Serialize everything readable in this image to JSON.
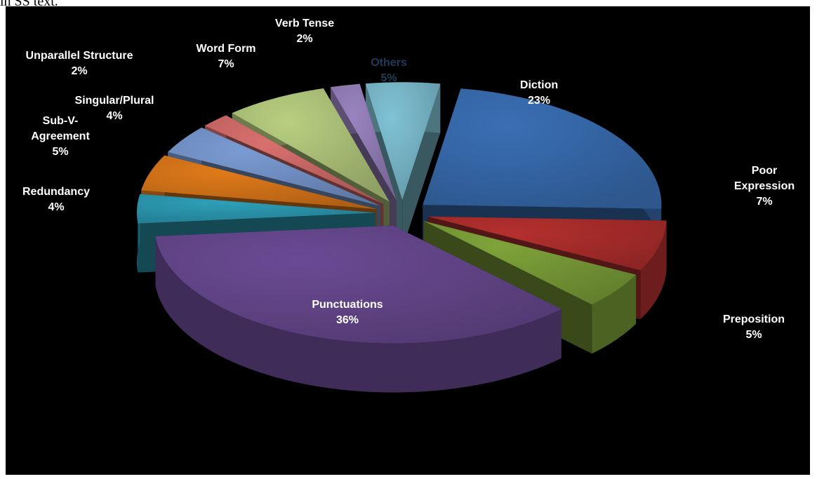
{
  "page_fragment_text": "in SS text.",
  "chart_data": {
    "type": "pie",
    "style": "3D exploded pie",
    "background": "#000000",
    "slices": [
      {
        "label": "Diction",
        "percent_label": "23%",
        "value": 23,
        "color": "#3a6fb5"
      },
      {
        "label": "Poor Expression",
        "percent_label": "7%",
        "value": 7,
        "color": "#b5302e"
      },
      {
        "label": "Preposition",
        "percent_label": "5%",
        "value": 5,
        "color": "#7fa33a"
      },
      {
        "label": "Punctuations",
        "percent_label": "36%",
        "value": 36,
        "color": "#6a4a93"
      },
      {
        "label": "Redundancy",
        "percent_label": "4%",
        "value": 4,
        "color": "#2d9fb8"
      },
      {
        "label": "Sub-V-Agreement",
        "percent_label": "5%",
        "value": 5,
        "color": "#e07a1a"
      },
      {
        "label": "Singular/Plural",
        "percent_label": "4%",
        "value": 4,
        "color": "#7a9bd3"
      },
      {
        "label": "Unparallel Structure",
        "percent_label": "2%",
        "value": 2,
        "color": "#d9706e"
      },
      {
        "label": "Word Form",
        "percent_label": "7%",
        "value": 7,
        "color": "#b7cf80"
      },
      {
        "label": "Verb Tense",
        "percent_label": "2%",
        "value": 2,
        "color": "#9a84c0"
      },
      {
        "label": "Others",
        "percent_label": "5%",
        "value": 5,
        "color": "#7fc3d6"
      }
    ]
  }
}
